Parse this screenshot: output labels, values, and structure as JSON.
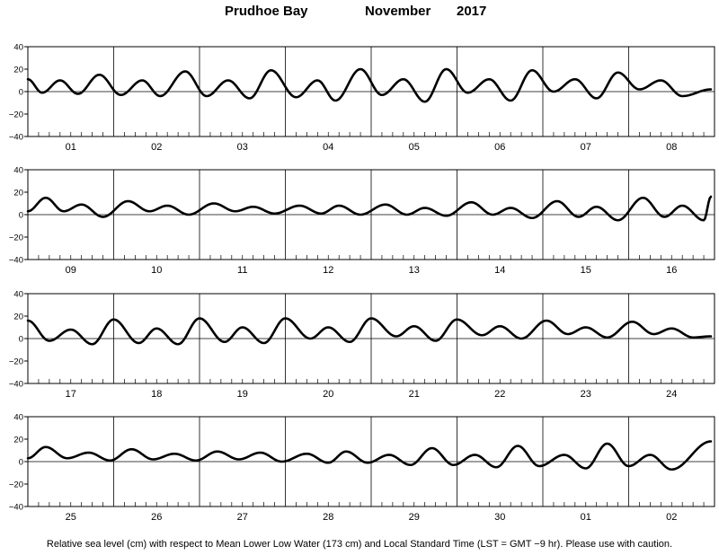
{
  "header": {
    "station": "Prudhoe Bay",
    "month": "November",
    "year": "2017"
  },
  "footer": {
    "note": "Relative sea level (cm) with respect to Mean Lower Low Water (173 cm) and Local Standard Time (LST = GMT −9 hr). Please use with caution."
  },
  "chart_data": {
    "type": "line",
    "title": "Prudhoe Bay          November   2017",
    "ylabel": "",
    "xlabel": "",
    "ylim": [
      -40,
      40
    ],
    "yticks": [
      40,
      20,
      0,
      -20,
      -40
    ],
    "hours_per_panel": 192,
    "hour_minor_tick_step": 3,
    "grid": "vertical lines at day boundaries and horizontal line at 0",
    "panels": [
      {
        "days": [
          "01",
          "02",
          "03",
          "04",
          "05",
          "06",
          "07",
          "08"
        ],
        "extrema": [
          [
            0,
            11
          ],
          [
            4,
            -1
          ],
          [
            9,
            10
          ],
          [
            14,
            -2
          ],
          [
            20,
            15
          ],
          [
            26,
            -3
          ],
          [
            32,
            10
          ],
          [
            37,
            -4
          ],
          [
            44,
            18
          ],
          [
            50,
            -4
          ],
          [
            56,
            10
          ],
          [
            62,
            -6
          ],
          [
            68,
            19
          ],
          [
            75,
            -5
          ],
          [
            81,
            10
          ],
          [
            86,
            -8
          ],
          [
            93,
            20
          ],
          [
            99,
            -3
          ],
          [
            105,
            11
          ],
          [
            111,
            -9
          ],
          [
            117,
            20
          ],
          [
            123,
            -1
          ],
          [
            129,
            11
          ],
          [
            135,
            -8
          ],
          [
            141,
            19
          ],
          [
            147,
            0
          ],
          [
            153,
            11
          ],
          [
            159,
            -6
          ],
          [
            165,
            17
          ],
          [
            171,
            2
          ],
          [
            177,
            10
          ],
          [
            183,
            -4
          ],
          [
            191,
            2
          ]
        ]
      },
      {
        "days": [
          "09",
          "10",
          "11",
          "12",
          "13",
          "14",
          "15",
          "16"
        ],
        "extrema": [
          [
            0,
            3
          ],
          [
            5,
            15
          ],
          [
            10,
            3
          ],
          [
            15,
            9
          ],
          [
            21,
            -2
          ],
          [
            28,
            12
          ],
          [
            34,
            3
          ],
          [
            39,
            8
          ],
          [
            45,
            0
          ],
          [
            52,
            10
          ],
          [
            58,
            3
          ],
          [
            63,
            7
          ],
          [
            69,
            1
          ],
          [
            76,
            8
          ],
          [
            82,
            1
          ],
          [
            87,
            8
          ],
          [
            93,
            0
          ],
          [
            100,
            9
          ],
          [
            106,
            0
          ],
          [
            111,
            6
          ],
          [
            117,
            -1
          ],
          [
            124,
            11
          ],
          [
            130,
            0
          ],
          [
            135,
            6
          ],
          [
            141,
            -3
          ],
          [
            148,
            12
          ],
          [
            154,
            -2
          ],
          [
            159,
            7
          ],
          [
            165,
            -5
          ],
          [
            172,
            15
          ],
          [
            178,
            -2
          ],
          [
            183,
            8
          ],
          [
            189,
            -5
          ],
          [
            191,
            16
          ]
        ]
      },
      {
        "days": [
          "17",
          "18",
          "19",
          "20",
          "21",
          "22",
          "23",
          "24"
        ],
        "extrema": [
          [
            0,
            16
          ],
          [
            6,
            -2
          ],
          [
            12,
            8
          ],
          [
            18,
            -5
          ],
          [
            24,
            17
          ],
          [
            31,
            -4
          ],
          [
            36,
            9
          ],
          [
            42,
            -5
          ],
          [
            48,
            18
          ],
          [
            55,
            -3
          ],
          [
            60,
            10
          ],
          [
            66,
            -4
          ],
          [
            72,
            18
          ],
          [
            79,
            0
          ],
          [
            84,
            10
          ],
          [
            90,
            -3
          ],
          [
            96,
            18
          ],
          [
            103,
            2
          ],
          [
            108,
            11
          ],
          [
            114,
            -2
          ],
          [
            120,
            17
          ],
          [
            127,
            3
          ],
          [
            132,
            11
          ],
          [
            138,
            0
          ],
          [
            145,
            16
          ],
          [
            151,
            4
          ],
          [
            156,
            10
          ],
          [
            162,
            1
          ],
          [
            169,
            15
          ],
          [
            175,
            4
          ],
          [
            180,
            9
          ],
          [
            186,
            1
          ],
          [
            191,
            2
          ]
        ]
      },
      {
        "days": [
          "25",
          "26",
          "27",
          "28",
          "29",
          "30",
          "01",
          "02"
        ],
        "extrema": [
          [
            0,
            3
          ],
          [
            5,
            13
          ],
          [
            11,
            3
          ],
          [
            17,
            8
          ],
          [
            23,
            1
          ],
          [
            29,
            11
          ],
          [
            35,
            2
          ],
          [
            41,
            7
          ],
          [
            47,
            1
          ],
          [
            53,
            9
          ],
          [
            59,
            2
          ],
          [
            65,
            8
          ],
          [
            71,
            0
          ],
          [
            78,
            7
          ],
          [
            84,
            -1
          ],
          [
            89,
            9
          ],
          [
            95,
            -1
          ],
          [
            101,
            6
          ],
          [
            107,
            -3
          ],
          [
            113,
            12
          ],
          [
            119,
            -3
          ],
          [
            125,
            6
          ],
          [
            131,
            -5
          ],
          [
            137,
            14
          ],
          [
            143,
            -4
          ],
          [
            150,
            6
          ],
          [
            156,
            -6
          ],
          [
            162,
            16
          ],
          [
            168,
            -4
          ],
          [
            174,
            6
          ],
          [
            180,
            -7
          ],
          [
            191,
            18
          ]
        ]
      }
    ]
  }
}
